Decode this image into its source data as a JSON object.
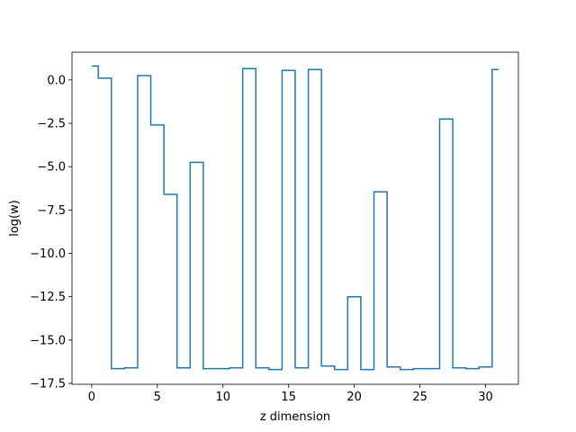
{
  "chart_data": {
    "type": "line",
    "drawstyle": "steps-mid",
    "title": "",
    "xlabel": "z dimension",
    "ylabel": "log(w)",
    "xlim": [
      -1.5,
      32.5
    ],
    "ylim": [
      -17.55,
      1.6
    ],
    "xticks": [
      0,
      5,
      10,
      15,
      20,
      25,
      30
    ],
    "yticks": [
      0.0,
      -2.5,
      -5.0,
      -7.5,
      -10.0,
      -12.5,
      -15.0,
      -17.5
    ],
    "xtick_labels": [
      "0",
      "5",
      "10",
      "15",
      "20",
      "25",
      "30"
    ],
    "ytick_labels": [
      "0.0",
      "−2.5",
      "−5.0",
      "−7.5",
      "−10.0",
      "−12.5",
      "−15.0",
      "−17.5"
    ],
    "grid": false,
    "legend": "none",
    "series": [
      {
        "color": "#1f77b4",
        "x": [
          0,
          1,
          2,
          3,
          4,
          5,
          6,
          7,
          8,
          9,
          10,
          11,
          12,
          13,
          14,
          15,
          16,
          17,
          18,
          19,
          20,
          21,
          22,
          23,
          24,
          25,
          26,
          27,
          28,
          29,
          30,
          31
        ],
        "y": [
          0.8,
          0.1,
          -16.65,
          -16.6,
          0.25,
          -2.6,
          -6.6,
          -16.6,
          -4.75,
          -16.65,
          -16.65,
          -16.6,
          0.65,
          -16.6,
          -16.7,
          0.55,
          -16.6,
          0.6,
          -16.5,
          -16.7,
          -12.5,
          -16.7,
          -6.45,
          -16.55,
          -16.7,
          -16.65,
          -16.65,
          -2.25,
          -16.6,
          -16.65,
          -16.55,
          0.6
        ]
      }
    ]
  }
}
